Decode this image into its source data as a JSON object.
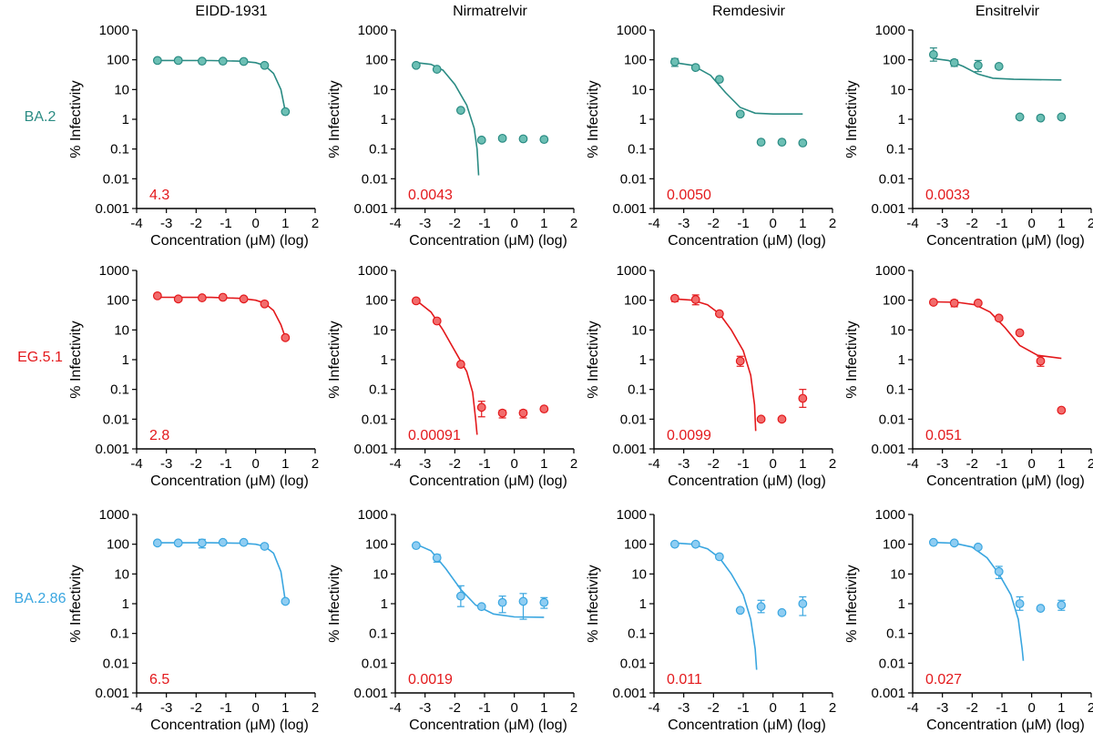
{
  "colors": {
    "BA.2": "#2a8b83",
    "BA.2_fill": "#6cbfb4",
    "EG.5.1": "#e3191c",
    "EG.5.1_fill": "#f26c6c",
    "BA.2.86": "#3aa6e0",
    "BA.2.86_fill": "#8fcdf2",
    "ic50_text": "#e3191c"
  },
  "chart_data": {
    "type": "scatter",
    "layout": "grid-3x4",
    "column_titles": [
      "EIDD-1931",
      "Nirmatrelvir",
      "Remdesivir",
      "Ensitrelvir"
    ],
    "row_labels": [
      "BA.2",
      "EG.5.1",
      "BA.2.86"
    ],
    "xlabel": "Concentration (μM) (log)",
    "ylabel": "% Infectivity",
    "xlim": [
      -4,
      2
    ],
    "x_ticks": [
      "-4",
      "-3",
      "-2",
      "-1",
      "0",
      "1",
      "2"
    ],
    "y_scale": "log",
    "ylim": [
      0.001,
      1000
    ],
    "y_ticks": [
      "0.001",
      "0.01",
      "0.1",
      "1",
      "10",
      "100",
      "1000"
    ],
    "panels": [
      {
        "row": 0,
        "col": 0,
        "ic50": "4.3",
        "points": [
          {
            "x": -3.3,
            "y": 95
          },
          {
            "x": -2.6,
            "y": 95
          },
          {
            "x": -1.8,
            "y": 90
          },
          {
            "x": -1.1,
            "y": 90
          },
          {
            "x": -0.4,
            "y": 88
          },
          {
            "x": 0.3,
            "y": 65
          },
          {
            "x": 1.0,
            "y": 1.8
          }
        ],
        "curve": [
          {
            "x": -3.3,
            "y": 95
          },
          {
            "x": -1.5,
            "y": 94
          },
          {
            "x": -0.5,
            "y": 90
          },
          {
            "x": 0,
            "y": 80
          },
          {
            "x": 0.3,
            "y": 65
          },
          {
            "x": 0.6,
            "y": 35
          },
          {
            "x": 0.85,
            "y": 10
          },
          {
            "x": 1.0,
            "y": 1.8
          }
        ]
      },
      {
        "row": 0,
        "col": 1,
        "ic50": "0.0043",
        "points": [
          {
            "x": -3.3,
            "y": 65
          },
          {
            "x": -2.6,
            "y": 48
          },
          {
            "x": -1.8,
            "y": 2
          },
          {
            "x": -1.1,
            "y": 0.2
          },
          {
            "x": -0.4,
            "y": 0.23
          },
          {
            "x": 0.3,
            "y": 0.22
          },
          {
            "x": 1.0,
            "y": 0.21
          }
        ],
        "curve": [
          {
            "x": -3.3,
            "y": 80
          },
          {
            "x": -2.8,
            "y": 70
          },
          {
            "x": -2.4,
            "y": 45
          },
          {
            "x": -2.0,
            "y": 15
          },
          {
            "x": -1.6,
            "y": 3
          },
          {
            "x": -1.35,
            "y": 0.5
          },
          {
            "x": -1.25,
            "y": 0.1
          },
          {
            "x": -1.2,
            "y": 0.013
          }
        ]
      },
      {
        "row": 0,
        "col": 2,
        "ic50": "0.0050",
        "points": [
          {
            "x": -3.3,
            "y": 85,
            "err": [
              60,
              110
            ]
          },
          {
            "x": -2.6,
            "y": 55
          },
          {
            "x": -1.8,
            "y": 22
          },
          {
            "x": -1.1,
            "y": 1.5
          },
          {
            "x": -0.4,
            "y": 0.17
          },
          {
            "x": 0.3,
            "y": 0.17
          },
          {
            "x": 1.0,
            "y": 0.16
          }
        ],
        "curve": [
          {
            "x": -3.3,
            "y": 80
          },
          {
            "x": -2.7,
            "y": 65
          },
          {
            "x": -2.1,
            "y": 30
          },
          {
            "x": -1.6,
            "y": 8
          },
          {
            "x": -1.1,
            "y": 2.5
          },
          {
            "x": -0.6,
            "y": 1.6
          },
          {
            "x": 0,
            "y": 1.5
          },
          {
            "x": 1.0,
            "y": 1.5
          }
        ]
      },
      {
        "row": 0,
        "col": 3,
        "ic50": "0.0033",
        "points": [
          {
            "x": -3.3,
            "y": 150,
            "err": [
              90,
              250
            ]
          },
          {
            "x": -2.6,
            "y": 80,
            "err": [
              60,
              100
            ]
          },
          {
            "x": -1.8,
            "y": 65,
            "err": [
              40,
              95
            ]
          },
          {
            "x": -1.1,
            "y": 60
          },
          {
            "x": -0.4,
            "y": 1.2
          },
          {
            "x": 0.3,
            "y": 1.1
          },
          {
            "x": 1.0,
            "y": 1.2
          }
        ],
        "curve": [
          {
            "x": -3.3,
            "y": 110
          },
          {
            "x": -2.8,
            "y": 95
          },
          {
            "x": -2.3,
            "y": 60
          },
          {
            "x": -1.8,
            "y": 33
          },
          {
            "x": -1.3,
            "y": 24
          },
          {
            "x": -0.6,
            "y": 22
          },
          {
            "x": 1.0,
            "y": 21
          }
        ]
      },
      {
        "row": 1,
        "col": 0,
        "ic50": "2.8",
        "points": [
          {
            "x": -3.3,
            "y": 140
          },
          {
            "x": -2.6,
            "y": 110
          },
          {
            "x": -1.8,
            "y": 120
          },
          {
            "x": -1.1,
            "y": 125
          },
          {
            "x": -0.4,
            "y": 110
          },
          {
            "x": 0.3,
            "y": 75
          },
          {
            "x": 1.0,
            "y": 5.5
          }
        ],
        "curve": [
          {
            "x": -3.3,
            "y": 125
          },
          {
            "x": -1.5,
            "y": 124
          },
          {
            "x": -0.5,
            "y": 115
          },
          {
            "x": 0,
            "y": 100
          },
          {
            "x": 0.3,
            "y": 80
          },
          {
            "x": 0.6,
            "y": 45
          },
          {
            "x": 0.85,
            "y": 15
          },
          {
            "x": 1.0,
            "y": 5.5
          }
        ]
      },
      {
        "row": 1,
        "col": 1,
        "ic50": "0.00091",
        "points": [
          {
            "x": -3.3,
            "y": 95
          },
          {
            "x": -2.6,
            "y": 20
          },
          {
            "x": -1.8,
            "y": 0.7
          },
          {
            "x": -1.1,
            "y": 0.025,
            "err": [
              0.012,
              0.04
            ]
          },
          {
            "x": -0.4,
            "y": 0.016,
            "err": [
              0.011,
              0.02
            ]
          },
          {
            "x": 0.3,
            "y": 0.016,
            "err": [
              0.011,
              0.02
            ]
          },
          {
            "x": 1.0,
            "y": 0.022
          }
        ],
        "curve": [
          {
            "x": -3.3,
            "y": 100
          },
          {
            "x": -2.8,
            "y": 40
          },
          {
            "x": -2.4,
            "y": 10
          },
          {
            "x": -2.0,
            "y": 2
          },
          {
            "x": -1.6,
            "y": 0.4
          },
          {
            "x": -1.4,
            "y": 0.08
          },
          {
            "x": -1.3,
            "y": 0.01
          },
          {
            "x": -1.25,
            "y": 0.003
          }
        ]
      },
      {
        "row": 1,
        "col": 2,
        "ic50": "0.0099",
        "points": [
          {
            "x": -3.3,
            "y": 115,
            "err": [
              90,
              140
            ]
          },
          {
            "x": -2.6,
            "y": 105,
            "err": [
              70,
              150
            ]
          },
          {
            "x": -1.8,
            "y": 35
          },
          {
            "x": -1.1,
            "y": 0.9,
            "err": [
              0.6,
              1.3
            ]
          },
          {
            "x": -0.4,
            "y": 0.01
          },
          {
            "x": 0.3,
            "y": 0.01
          },
          {
            "x": 1.0,
            "y": 0.05,
            "err": [
              0.025,
              0.1
            ]
          }
        ],
        "curve": [
          {
            "x": -3.3,
            "y": 110
          },
          {
            "x": -2.7,
            "y": 100
          },
          {
            "x": -2.2,
            "y": 70
          },
          {
            "x": -1.8,
            "y": 35
          },
          {
            "x": -1.4,
            "y": 10
          },
          {
            "x": -1.0,
            "y": 2
          },
          {
            "x": -0.75,
            "y": 0.3
          },
          {
            "x": -0.62,
            "y": 0.03
          },
          {
            "x": -0.58,
            "y": 0.004
          }
        ]
      },
      {
        "row": 1,
        "col": 3,
        "ic50": "0.051",
        "points": [
          {
            "x": -3.3,
            "y": 85
          },
          {
            "x": -2.6,
            "y": 80,
            "err": [
              60,
              100
            ]
          },
          {
            "x": -1.8,
            "y": 80
          },
          {
            "x": -1.1,
            "y": 25
          },
          {
            "x": -0.4,
            "y": 8
          },
          {
            "x": 0.3,
            "y": 0.9,
            "err": [
              0.6,
              1.3
            ]
          },
          {
            "x": 1.0,
            "y": 0.02
          }
        ],
        "curve": [
          {
            "x": -3.3,
            "y": 88
          },
          {
            "x": -2.5,
            "y": 85
          },
          {
            "x": -1.9,
            "y": 70
          },
          {
            "x": -1.4,
            "y": 40
          },
          {
            "x": -0.9,
            "y": 12
          },
          {
            "x": -0.4,
            "y": 3
          },
          {
            "x": 0.2,
            "y": 1.4
          },
          {
            "x": 1.0,
            "y": 1.1
          }
        ]
      },
      {
        "row": 2,
        "col": 0,
        "ic50": "6.5",
        "points": [
          {
            "x": -3.3,
            "y": 110
          },
          {
            "x": -2.6,
            "y": 110
          },
          {
            "x": -1.8,
            "y": 110,
            "err": [
              75,
              145
            ]
          },
          {
            "x": -1.1,
            "y": 115
          },
          {
            "x": -0.4,
            "y": 115
          },
          {
            "x": 0.3,
            "y": 85
          },
          {
            "x": 1.0,
            "y": 1.2
          }
        ],
        "curve": [
          {
            "x": -3.3,
            "y": 112
          },
          {
            "x": -1.5,
            "y": 112
          },
          {
            "x": -0.5,
            "y": 108
          },
          {
            "x": 0,
            "y": 100
          },
          {
            "x": 0.3,
            "y": 85
          },
          {
            "x": 0.6,
            "y": 50
          },
          {
            "x": 0.85,
            "y": 12
          },
          {
            "x": 1.0,
            "y": 1.2
          }
        ]
      },
      {
        "row": 2,
        "col": 1,
        "ic50": "0.0019",
        "points": [
          {
            "x": -3.3,
            "y": 90
          },
          {
            "x": -2.6,
            "y": 35,
            "err": [
              25,
              45
            ]
          },
          {
            "x": -1.8,
            "y": 1.8,
            "err": [
              0.8,
              4
            ]
          },
          {
            "x": -1.1,
            "y": 0.8
          },
          {
            "x": -0.4,
            "y": 1.1,
            "err": [
              0.5,
              1.8
            ]
          },
          {
            "x": 0.3,
            "y": 1.2,
            "err": [
              0.3,
              2.2
            ]
          },
          {
            "x": 1.0,
            "y": 1.1,
            "err": [
              0.7,
              1.6
            ]
          }
        ],
        "curve": [
          {
            "x": -3.3,
            "y": 100
          },
          {
            "x": -2.8,
            "y": 60
          },
          {
            "x": -2.3,
            "y": 15
          },
          {
            "x": -1.8,
            "y": 3
          },
          {
            "x": -1.3,
            "y": 0.9
          },
          {
            "x": -0.7,
            "y": 0.45
          },
          {
            "x": 0,
            "y": 0.36
          },
          {
            "x": 1.0,
            "y": 0.35
          }
        ]
      },
      {
        "row": 2,
        "col": 2,
        "ic50": "0.011",
        "points": [
          {
            "x": -3.3,
            "y": 100
          },
          {
            "x": -2.6,
            "y": 100
          },
          {
            "x": -1.8,
            "y": 38
          },
          {
            "x": -1.1,
            "y": 0.6
          },
          {
            "x": -0.4,
            "y": 0.8,
            "err": [
              0.5,
              1.3
            ]
          },
          {
            "x": 0.3,
            "y": 0.5
          },
          {
            "x": 1.0,
            "y": 1.0,
            "err": [
              0.4,
              1.7
            ]
          }
        ],
        "curve": [
          {
            "x": -3.3,
            "y": 110
          },
          {
            "x": -2.7,
            "y": 100
          },
          {
            "x": -2.2,
            "y": 70
          },
          {
            "x": -1.8,
            "y": 35
          },
          {
            "x": -1.4,
            "y": 10
          },
          {
            "x": -1.0,
            "y": 2
          },
          {
            "x": -0.75,
            "y": 0.3
          },
          {
            "x": -0.6,
            "y": 0.03
          },
          {
            "x": -0.55,
            "y": 0.006
          }
        ]
      },
      {
        "row": 2,
        "col": 3,
        "ic50": "0.027",
        "points": [
          {
            "x": -3.3,
            "y": 115
          },
          {
            "x": -2.6,
            "y": 110
          },
          {
            "x": -1.8,
            "y": 80
          },
          {
            "x": -1.1,
            "y": 12,
            "err": [
              7,
              18
            ]
          },
          {
            "x": -0.4,
            "y": 1.0,
            "err": [
              0.6,
              1.7
            ]
          },
          {
            "x": 0.3,
            "y": 0.7
          },
          {
            "x": 1.0,
            "y": 0.9,
            "err": [
              0.6,
              1.3
            ]
          }
        ],
        "curve": [
          {
            "x": -3.3,
            "y": 115
          },
          {
            "x": -2.6,
            "y": 108
          },
          {
            "x": -2.0,
            "y": 80
          },
          {
            "x": -1.5,
            "y": 35
          },
          {
            "x": -1.1,
            "y": 10
          },
          {
            "x": -0.7,
            "y": 2
          },
          {
            "x": -0.45,
            "y": 0.3
          },
          {
            "x": -0.32,
            "y": 0.03
          },
          {
            "x": -0.28,
            "y": 0.012
          }
        ]
      }
    ]
  }
}
